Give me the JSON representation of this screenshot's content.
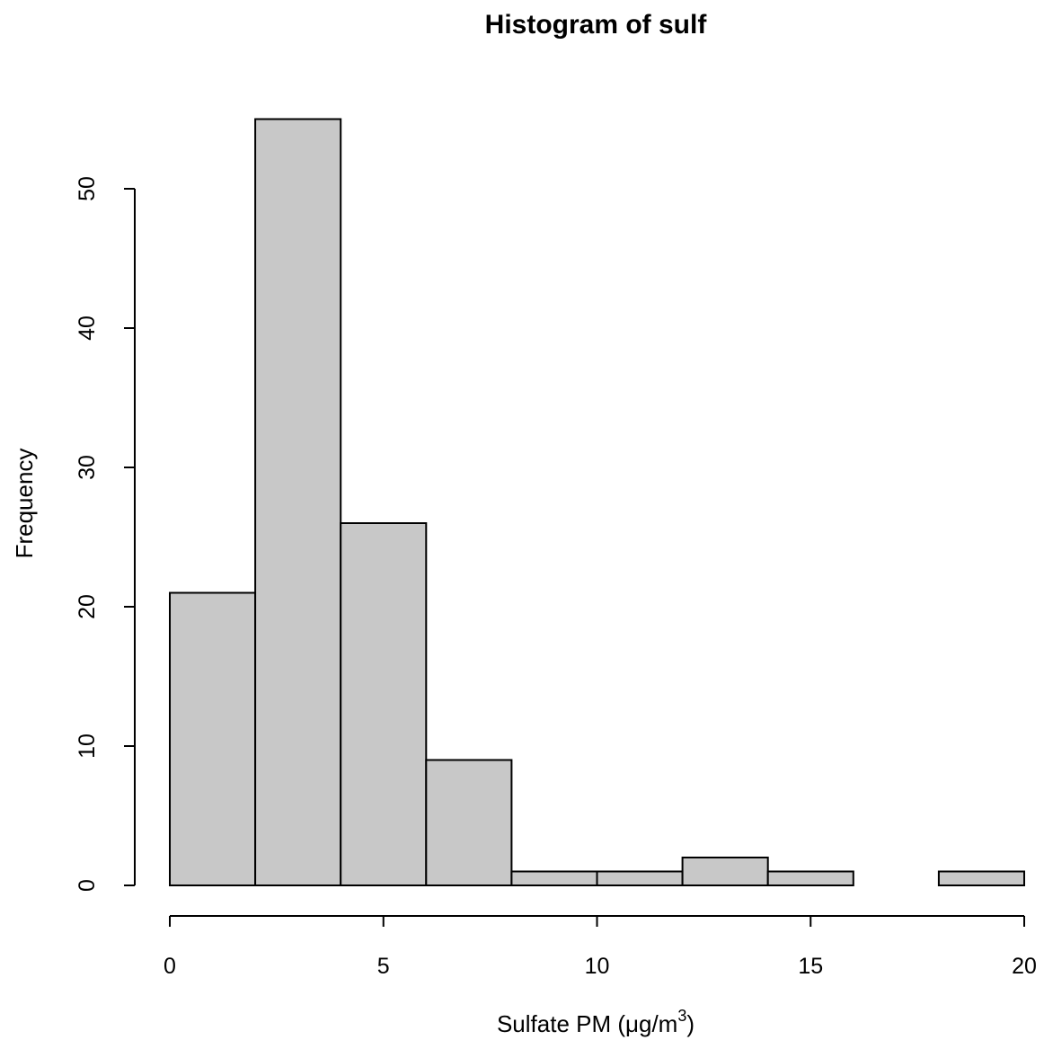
{
  "chart_data": {
    "type": "bar",
    "title": "Histogram of sulf",
    "xlabel": "Sulfate PM (μg/m³)",
    "xlabel_parts": {
      "main": "Sulfate PM (",
      "mu": "μ",
      "unit": "g/m",
      "sup": "3",
      "close": ")"
    },
    "ylabel": "Frequency",
    "bins": [
      {
        "start": 0,
        "end": 2,
        "count": 21
      },
      {
        "start": 2,
        "end": 4,
        "count": 55
      },
      {
        "start": 4,
        "end": 6,
        "count": 26
      },
      {
        "start": 6,
        "end": 8,
        "count": 9
      },
      {
        "start": 8,
        "end": 10,
        "count": 1
      },
      {
        "start": 10,
        "end": 12,
        "count": 1
      },
      {
        "start": 12,
        "end": 14,
        "count": 2
      },
      {
        "start": 14,
        "end": 16,
        "count": 1
      },
      {
        "start": 16,
        "end": 18,
        "count": 0
      },
      {
        "start": 18,
        "end": 20,
        "count": 1
      }
    ],
    "xlim": [
      0,
      20
    ],
    "ylim": [
      0,
      55
    ],
    "xticks": [
      0,
      5,
      10,
      15,
      20
    ],
    "yticks": [
      0,
      10,
      20,
      30,
      40,
      50
    ],
    "xtick_labels": [
      "0",
      "5",
      "10",
      "15",
      "20"
    ],
    "ytick_labels": [
      "0",
      "10",
      "20",
      "30",
      "40",
      "50"
    ],
    "grid": false,
    "bar_color": "#c8c8c8",
    "edge_color": "#000000"
  }
}
